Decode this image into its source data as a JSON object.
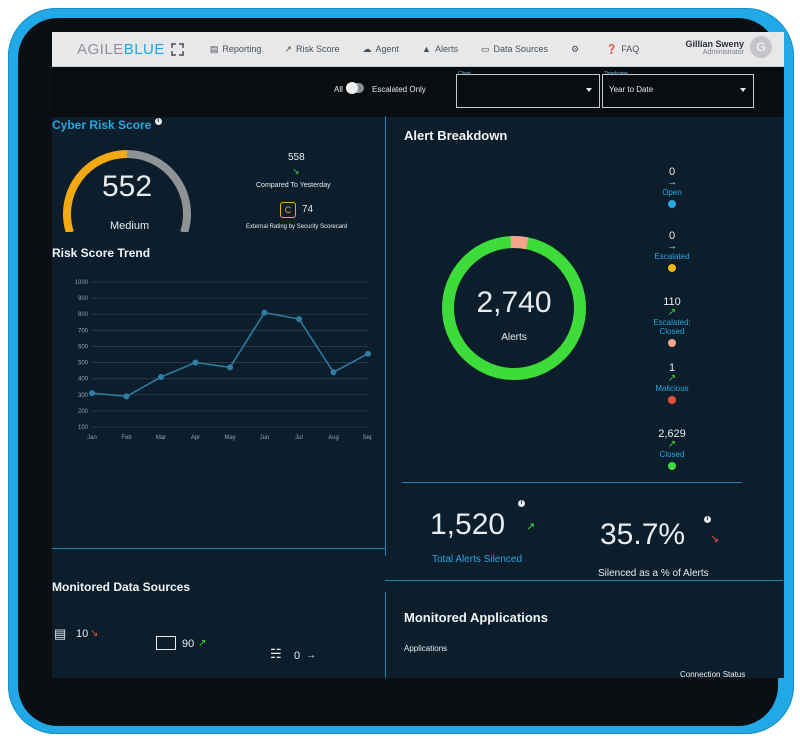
{
  "header": {
    "brand_main": "AGILE",
    "brand_accent": "BLUE",
    "nav": [
      {
        "icon": "reporting-icon",
        "label": "Reporting"
      },
      {
        "icon": "risk-score-icon",
        "label": "Risk Score"
      },
      {
        "icon": "cloud-icon",
        "label": "Agent"
      },
      {
        "icon": "alert-triangle-icon",
        "label": "Alerts"
      },
      {
        "icon": "data-sources-icon",
        "label": "Data Sources"
      },
      {
        "icon": "gear-icon",
        "label": ""
      },
      {
        "icon": "help-circle-icon",
        "label": "FAQ"
      }
    ],
    "user": {
      "name": "Gillian Sweny",
      "role": "Administrator",
      "initial": "G"
    }
  },
  "filters": {
    "all_label": "All",
    "escalated_label": "Escalated Only",
    "client": {
      "label": "Client",
      "value": ""
    },
    "timeframe": {
      "label": "Timeframe",
      "value": "Year to Date"
    }
  },
  "cyber_risk": {
    "title": "Cyber Risk Score",
    "score": "552",
    "level": "Medium",
    "gauge_fraction": 0.5,
    "yesterday_value": "558",
    "yesterday_label": "Compared To Yesterday",
    "external_value": "74",
    "external_label": "External Rating by Security Scorecard"
  },
  "trend": {
    "title": "Risk Score Trend"
  },
  "chart_data": {
    "type": "line",
    "categories": [
      "Jan",
      "Feb",
      "Mar",
      "Apr",
      "May",
      "Jun",
      "Jul",
      "Aug",
      "Sep"
    ],
    "values": [
      310,
      290,
      410,
      500,
      470,
      810,
      770,
      440,
      555
    ],
    "yticks": [
      "1000",
      "900",
      "800",
      "700",
      "600",
      "500",
      "400",
      "300",
      "200",
      "100"
    ],
    "ylim": [
      100,
      1000
    ],
    "grid": true,
    "title": "Risk Score Trend"
  },
  "alert_breakdown": {
    "title": "Alert Breakdown",
    "total": "2,740",
    "total_label": "Alerts",
    "items": [
      {
        "count": "0",
        "label": "Open",
        "color": "#29a8e0",
        "trend": "flat"
      },
      {
        "count": "0",
        "label": "Escalated",
        "color": "#f5b514",
        "trend": "flat"
      },
      {
        "count": "110",
        "label": "Escalated: Closed",
        "color": "#f6a58c",
        "trend": "up"
      },
      {
        "count": "1",
        "label": "Malicious",
        "color": "#e9533e",
        "trend": "up"
      },
      {
        "count": "2,629",
        "label": "Closed",
        "color": "#3ddc3a",
        "trend": "up"
      }
    ]
  },
  "silenced": {
    "total": "1,520",
    "total_label": "Total Alerts Silenced",
    "percent": "35.7%",
    "percent_label": "Silenced as a % of Alerts"
  },
  "data_sources": {
    "title": "Monitored Data Sources",
    "items": [
      {
        "icon": "server-list-icon",
        "value": "10",
        "trend": "down"
      },
      {
        "icon": "monitor-icon",
        "value": "90",
        "trend": "up"
      },
      {
        "icon": "network-icon",
        "value": "0",
        "trend": "flat"
      }
    ]
  },
  "applications": {
    "title": "Monitored Applications",
    "col_applications": "Applications",
    "col_status": "Connection Status"
  },
  "colors": {
    "accent": "#28a6e0",
    "tablet": "#21a8e6",
    "gauge_orange": "#f3a912",
    "gauge_gray": "#8e9396",
    "donut_green": "#3ddc3a",
    "donut_peach": "#f6a58c",
    "trend_up": "#3ddc3a",
    "trend_down": "#e9533e"
  }
}
